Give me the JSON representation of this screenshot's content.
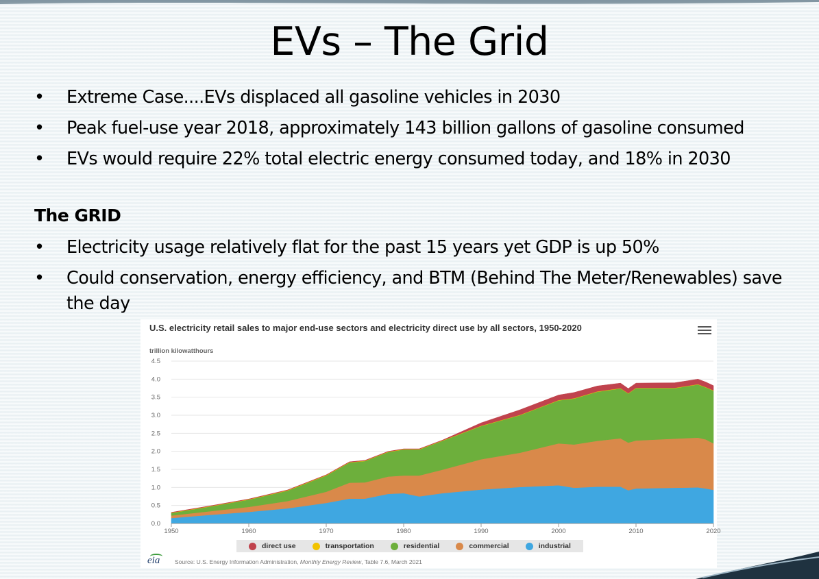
{
  "slide": {
    "title": "EVs – The Grid",
    "bullets_top": [
      "Extreme Case....EVs displaced all gasoline vehicles in 2030",
      "Peak fuel-use year 2018, approximately 143 billion gallons of gasoline consumed",
      "EVs would require 22% total electric energy consumed today, and 18% in 2030"
    ],
    "section_heading": "The GRID",
    "bullets_grid": [
      "Electricity usage relatively flat for the past 15 years yet GDP is up 50%",
      "Could conservation, energy efficiency, and BTM (Behind The Meter/Renewables) save the day"
    ],
    "bullet_glyph": "•"
  },
  "chart_card": {
    "title": "U.S. electricity retail sales to major end-use sectors and electricity direct use by all sectors, 1950-2020",
    "unit": "trillion kilowatthours",
    "logo_text": "eia",
    "source_prefix": "Source: U.S. Energy Information Administration, ",
    "source_italic": "Monthly Energy Review",
    "source_suffix": ", Table 7.6, March 2021"
  },
  "chart_data": {
    "type": "area",
    "stacked": true,
    "title": "U.S. electricity retail sales to major end-use sectors and electricity direct use by all sectors, 1950-2020",
    "ylabel": "trillion kilowatthours",
    "xlabel": "",
    "ylim": [
      0,
      4.5
    ],
    "xlim": [
      1950,
      2020
    ],
    "yticks": [
      "0.0",
      "0.5",
      "1.0",
      "1.5",
      "2.0",
      "2.5",
      "3.0",
      "3.5",
      "4.0",
      "4.5"
    ],
    "xticks": [
      "1950",
      "1960",
      "1970",
      "1980",
      "1990",
      "2000",
      "2010",
      "2020"
    ],
    "x": [
      1950,
      1955,
      1960,
      1965,
      1970,
      1973,
      1975,
      1978,
      1980,
      1982,
      1985,
      1990,
      1995,
      2000,
      2002,
      2005,
      2008,
      2009,
      2010,
      2015,
      2018,
      2019,
      2020
    ],
    "series": [
      {
        "name": "industrial",
        "color": "#3fa7e1",
        "values": [
          0.15,
          0.24,
          0.32,
          0.42,
          0.57,
          0.69,
          0.69,
          0.82,
          0.84,
          0.75,
          0.84,
          0.94,
          1.01,
          1.06,
          0.99,
          1.02,
          1.02,
          0.92,
          0.97,
          0.99,
          1.0,
          0.97,
          0.93
        ]
      },
      {
        "name": "commercial",
        "color": "#d9894a",
        "values": [
          0.07,
          0.1,
          0.14,
          0.2,
          0.31,
          0.44,
          0.45,
          0.48,
          0.49,
          0.58,
          0.65,
          0.84,
          0.95,
          1.16,
          1.2,
          1.27,
          1.34,
          1.32,
          1.33,
          1.36,
          1.38,
          1.36,
          1.29
        ]
      },
      {
        "name": "residential",
        "color": "#6daf3c",
        "values": [
          0.07,
          0.13,
          0.2,
          0.29,
          0.45,
          0.56,
          0.59,
          0.68,
          0.72,
          0.72,
          0.8,
          0.92,
          1.04,
          1.19,
          1.27,
          1.36,
          1.38,
          1.36,
          1.45,
          1.4,
          1.47,
          1.44,
          1.46
        ]
      },
      {
        "name": "transportation",
        "color": "#f2c300",
        "values": [
          0.01,
          0.01,
          0.01,
          0.01,
          0.01,
          0.01,
          0.01,
          0.01,
          0.01,
          0.01,
          0.01,
          0.01,
          0.01,
          0.01,
          0.01,
          0.01,
          0.01,
          0.01,
          0.01,
          0.01,
          0.01,
          0.01,
          0.01
        ]
      },
      {
        "name": "direct use",
        "color": "#c0434d",
        "values": [
          0.01,
          0.01,
          0.01,
          0.01,
          0.01,
          0.01,
          0.01,
          0.01,
          0.01,
          0.01,
          0.01,
          0.08,
          0.14,
          0.14,
          0.16,
          0.15,
          0.14,
          0.13,
          0.13,
          0.14,
          0.14,
          0.14,
          0.13
        ]
      }
    ],
    "legend": [
      {
        "name": "direct use",
        "color": "#c0434d"
      },
      {
        "name": "transportation",
        "color": "#f2c300"
      },
      {
        "name": "residential",
        "color": "#6daf3c"
      },
      {
        "name": "commercial",
        "color": "#d9894a"
      },
      {
        "name": "industrial",
        "color": "#3fa7e1"
      }
    ],
    "legend_position": "bottom"
  }
}
